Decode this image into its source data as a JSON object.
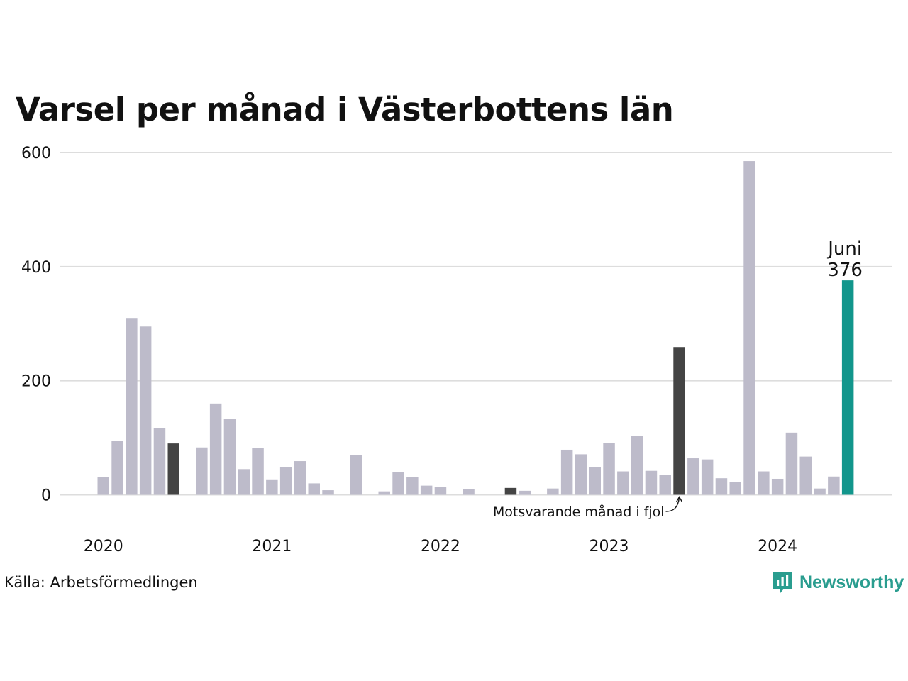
{
  "header": {
    "title": "Varsel per månad i Västerbottens län"
  },
  "footer": {
    "source": "Källa: Arbetsförmedlingen",
    "brand": "Newsworthy"
  },
  "colors": {
    "bar": "#bdbbca",
    "comparison": "#444444",
    "highlight": "#12968c",
    "grid": "#dddddd",
    "brand": "#2a9d8f"
  },
  "icons": {
    "brand_logo": "bar-chart-speech-bubble-icon"
  },
  "chart_data": {
    "type": "bar",
    "title": "Varsel per månad i Västerbottens län",
    "xlabel": "",
    "ylabel": "",
    "ylim": [
      0,
      600
    ],
    "yticks": [
      0,
      200,
      400,
      600
    ],
    "grid": true,
    "x_tick_labels": [
      {
        "label": "2020",
        "index": 0
      },
      {
        "label": "2021",
        "index": 12
      },
      {
        "label": "2022",
        "index": 24
      },
      {
        "label": "2023",
        "index": 36
      },
      {
        "label": "2024",
        "index": 48
      }
    ],
    "months": [
      "2020-01",
      "2020-02",
      "2020-03",
      "2020-04",
      "2020-05",
      "2020-06",
      "2020-07",
      "2020-08",
      "2020-09",
      "2020-10",
      "2020-11",
      "2020-12",
      "2021-01",
      "2021-02",
      "2021-03",
      "2021-04",
      "2021-05",
      "2021-06",
      "2021-07",
      "2021-08",
      "2021-09",
      "2021-10",
      "2021-11",
      "2021-12",
      "2022-01",
      "2022-02",
      "2022-03",
      "2022-04",
      "2022-05",
      "2022-06",
      "2022-07",
      "2022-08",
      "2022-09",
      "2022-10",
      "2022-11",
      "2022-12",
      "2023-01",
      "2023-02",
      "2023-03",
      "2023-04",
      "2023-05",
      "2023-06",
      "2023-07",
      "2023-08",
      "2023-09",
      "2023-10",
      "2023-11",
      "2023-12",
      "2024-01",
      "2024-02",
      "2024-03",
      "2024-04",
      "2024-05",
      "2024-06"
    ],
    "values": [
      31,
      94,
      310,
      295,
      117,
      90,
      0,
      83,
      160,
      133,
      45,
      82,
      27,
      48,
      59,
      20,
      8,
      0,
      70,
      0,
      6,
      40,
      31,
      16,
      14,
      0,
      10,
      0,
      0,
      12,
      7,
      0,
      11,
      79,
      71,
      49,
      91,
      41,
      103,
      42,
      35,
      259,
      64,
      62,
      29,
      23,
      585,
      41,
      28,
      109,
      67,
      11,
      32,
      376
    ],
    "comparison_indices": [
      5,
      29,
      41
    ],
    "highlight_index": 53,
    "highlight_label": {
      "month": "Juni",
      "value": "376"
    },
    "annotation": {
      "text": "Motsvarande månad i fjol",
      "target_index": 41
    }
  }
}
